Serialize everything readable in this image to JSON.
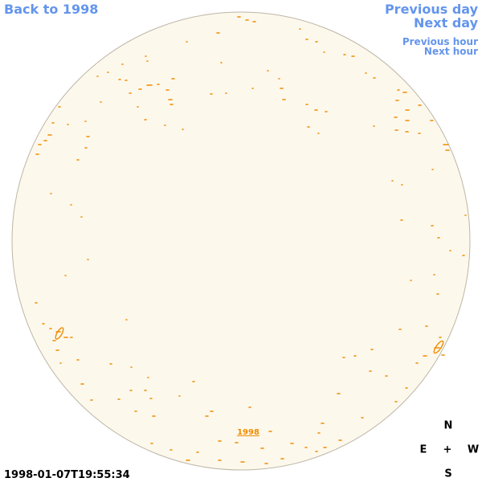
{
  "nav": {
    "back": "Back to 1998",
    "previous_day": "Previous day",
    "next_day": "Next day",
    "previous_hour": "Previous hour",
    "next_hour": "Next hour"
  },
  "disk_label": "1998",
  "compass": {
    "north": "N",
    "east": "E",
    "center": "+",
    "west": "W",
    "south": "S"
  },
  "timestamp": "1998-01-07T19:55:34"
}
